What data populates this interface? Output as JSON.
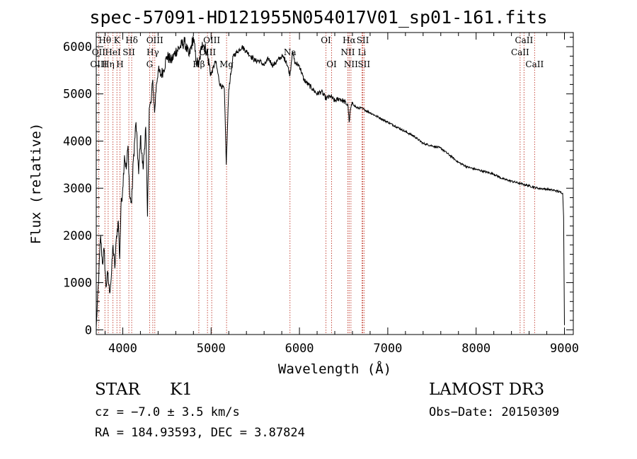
{
  "chart_data": {
    "type": "line",
    "title": "spec-57091-HD121955N054017V01_sp01-161.fits",
    "xlabel": "Wavelength (Å)",
    "ylabel": "Flux (relative)",
    "xlim": [
      3700,
      9100
    ],
    "ylim": [
      -100,
      6300
    ],
    "xticks": [
      4000,
      5000,
      6000,
      7000,
      8000,
      9000
    ],
    "yticks": [
      0,
      1000,
      2000,
      3000,
      4000,
      5000,
      6000
    ],
    "series": [
      {
        "name": "Flux",
        "x": [
          3700,
          3730,
          3750,
          3770,
          3790,
          3810,
          3830,
          3850,
          3870,
          3890,
          3910,
          3930,
          3950,
          3965,
          3980,
          4000,
          4020,
          4040,
          4060,
          4080,
          4101,
          4120,
          4150,
          4180,
          4200,
          4230,
          4260,
          4280,
          4300,
          4320,
          4340,
          4360,
          4380,
          4400,
          4430,
          4460,
          4500,
          4550,
          4600,
          4650,
          4700,
          4750,
          4800,
          4830,
          4861,
          4900,
          4950,
          5000,
          5050,
          5100,
          5150,
          5172,
          5200,
          5250,
          5300,
          5350,
          5400,
          5450,
          5500,
          5550,
          5600,
          5650,
          5700,
          5750,
          5800,
          5850,
          5893,
          5920,
          5950,
          6000,
          6050,
          6100,
          6150,
          6200,
          6250,
          6300,
          6350,
          6400,
          6450,
          6500,
          6550,
          6563,
          6580,
          6600,
          6650,
          6700,
          6800,
          6900,
          7000,
          7100,
          7200,
          7300,
          7400,
          7500,
          7600,
          7700,
          7800,
          7900,
          8000,
          8100,
          8200,
          8300,
          8400,
          8500,
          8600,
          8700,
          8800,
          8900,
          8980,
          8990,
          9000
        ],
        "y": [
          50,
          1200,
          2000,
          1400,
          1700,
          900,
          1200,
          800,
          1100,
          1800,
          1300,
          2000,
          2300,
          1500,
          2600,
          3000,
          3700,
          3400,
          3900,
          2800,
          2700,
          3600,
          4400,
          3300,
          4100,
          3400,
          4300,
          2400,
          4700,
          4800,
          5300,
          4600,
          5200,
          5500,
          5400,
          5500,
          5800,
          5700,
          5900,
          6000,
          6100,
          5800,
          6200,
          5700,
          5600,
          6100,
          5900,
          5400,
          5700,
          5200,
          5100,
          3500,
          5100,
          5800,
          5900,
          6000,
          5900,
          5800,
          5700,
          5700,
          5600,
          5750,
          5600,
          5700,
          5800,
          5700,
          5400,
          5900,
          5650,
          5600,
          5300,
          5200,
          5100,
          5000,
          5050,
          4900,
          4950,
          4850,
          4900,
          4850,
          4750,
          4400,
          4700,
          4800,
          4700,
          4700,
          4600,
          4500,
          4400,
          4300,
          4200,
          4100,
          3950,
          3900,
          3850,
          3700,
          3550,
          3450,
          3400,
          3350,
          3300,
          3200,
          3150,
          3100,
          3050,
          3000,
          2980,
          2950,
          2900,
          2400,
          100
        ]
      }
    ],
    "lines": [
      {
        "name": "Hθ",
        "wave": 3798,
        "row": 0
      },
      {
        "name": "OII",
        "wave": 3727,
        "row": 1
      },
      {
        "name": "OIII",
        "wave": 3727,
        "row": 2
      },
      {
        "name": "Hη",
        "wave": 3835,
        "row": 2
      },
      {
        "name": "HeI",
        "wave": 3889,
        "row": 1
      },
      {
        "name": "K",
        "wave": 3934,
        "row": 0
      },
      {
        "name": "H",
        "wave": 3968,
        "row": 2
      },
      {
        "name": "SII",
        "wave": 4069,
        "row": 1
      },
      {
        "name": "Hδ",
        "wave": 4101,
        "row": 0
      },
      {
        "name": "OIII",
        "wave": 4363,
        "row": 0
      },
      {
        "name": "Hγ",
        "wave": 4340,
        "row": 1
      },
      {
        "name": "G",
        "wave": 4304,
        "row": 2
      },
      {
        "name": "Hβ",
        "wave": 4861,
        "row": 2
      },
      {
        "name": "OIII",
        "wave": 4959,
        "row": 1
      },
      {
        "name": "OIII",
        "wave": 5007,
        "row": 0
      },
      {
        "name": "Mg",
        "wave": 5175,
        "row": 2
      },
      {
        "name": "Na",
        "wave": 5893,
        "row": 1
      },
      {
        "name": "OI",
        "wave": 6300,
        "row": 0
      },
      {
        "name": "OI",
        "wave": 6364,
        "row": 2
      },
      {
        "name": "Hα",
        "wave": 6563,
        "row": 0
      },
      {
        "name": "NII",
        "wave": 6548,
        "row": 1
      },
      {
        "name": "NII",
        "wave": 6583,
        "row": 2
      },
      {
        "name": "SII",
        "wave": 6717,
        "row": 0
      },
      {
        "name": "Li",
        "wave": 6708,
        "row": 1
      },
      {
        "name": "SII",
        "wave": 6731,
        "row": 2
      },
      {
        "name": "CaII",
        "wave": 8542,
        "row": 0
      },
      {
        "name": "CaII",
        "wave": 8498,
        "row": 1
      },
      {
        "name": "CaII",
        "wave": 8662,
        "row": 2
      }
    ]
  },
  "info": {
    "class": "STAR",
    "subclass": "K1",
    "survey": "LAMOST DR3",
    "cz": "cz = −7.0 ± 3.5 km/s",
    "obs_date": "Obs−Date: 20150309",
    "radec": "RA = 184.93593, DEC =   3.87824"
  },
  "colors": {
    "line_marker": "#c0392b",
    "spectrum": "#000000"
  }
}
